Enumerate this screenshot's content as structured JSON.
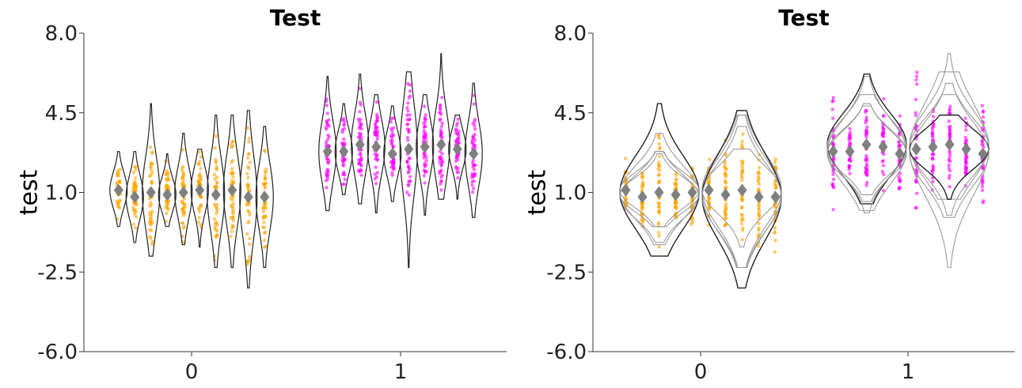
{
  "colors": {
    "group0_points": "#FFA500",
    "group1_points": "#FF00FF",
    "violin_outline": "#222222",
    "violin_outline_faded": "#9a9a9a",
    "mean_marker": "#808080"
  },
  "chart_data": [
    {
      "type": "violin",
      "title": "Test",
      "ylabel": "test",
      "xlabel": "",
      "ylim": [
        -6.0,
        8.0
      ],
      "yticks": [
        "8.0",
        "4.5",
        "1.0",
        "-2.5",
        "-6.0"
      ],
      "ytick_values": [
        8.0,
        4.5,
        1.0,
        -2.5,
        -6.0
      ],
      "categories": [
        "0",
        "1"
      ],
      "legend": "none",
      "grid": false,
      "layout_mode": "dodged",
      "series": [
        {
          "category": "0",
          "color": "#FFA500",
          "violins": [
            {
              "min": -0.5,
              "max": 2.8,
              "mean": 1.1
            },
            {
              "min": -1.2,
              "max": 2.8,
              "mean": 0.8
            },
            {
              "min": -1.8,
              "max": 4.9,
              "mean": 1.0
            },
            {
              "min": -0.5,
              "max": 2.7,
              "mean": 0.9
            },
            {
              "min": -1.3,
              "max": 3.6,
              "mean": 1.0
            },
            {
              "min": -1.4,
              "max": 2.9,
              "mean": 1.1
            },
            {
              "min": -2.3,
              "max": 4.4,
              "mean": 0.9
            },
            {
              "min": -2.3,
              "max": 4.4,
              "mean": 1.1
            },
            {
              "min": -3.2,
              "max": 4.6,
              "mean": 0.8
            },
            {
              "min": -2.3,
              "max": 3.9,
              "mean": 0.8
            }
          ]
        },
        {
          "category": "1",
          "color": "#FF00FF",
          "violins": [
            {
              "min": 0.2,
              "max": 6.1,
              "mean": 2.8
            },
            {
              "min": 0.9,
              "max": 4.9,
              "mean": 2.8
            },
            {
              "min": 0.5,
              "max": 6.2,
              "mean": 3.1
            },
            {
              "min": 0.1,
              "max": 5.3,
              "mean": 3.0
            },
            {
              "min": 0.6,
              "max": 4.8,
              "mean": 2.7
            },
            {
              "min": -2.3,
              "max": 6.3,
              "mean": 2.9
            },
            {
              "min": 0.0,
              "max": 5.3,
              "mean": 3.0
            },
            {
              "min": 0.7,
              "max": 7.1,
              "mean": 3.1
            },
            {
              "min": 0.7,
              "max": 4.4,
              "mean": 2.9
            },
            {
              "min": -0.1,
              "max": 5.8,
              "mean": 2.7
            }
          ]
        }
      ]
    },
    {
      "type": "violin",
      "title": "Test",
      "ylabel": "test",
      "xlabel": "",
      "ylim": [
        -6.0,
        8.0
      ],
      "yticks": [
        "8.0",
        "4.5",
        "1.0",
        "-2.5",
        "-6.0"
      ],
      "ytick_values": [
        8.0,
        4.5,
        1.0,
        -2.5,
        -6.0
      ],
      "categories": [
        "0",
        "1"
      ],
      "legend": "none",
      "grid": false,
      "layout_mode": "overlaid",
      "series": [
        {
          "category": "0",
          "color": "#FFA500",
          "violins": [
            {
              "min": -0.5,
              "max": 2.8,
              "mean": 1.1
            },
            {
              "min": -1.2,
              "max": 2.8,
              "mean": 0.8
            },
            {
              "min": -1.8,
              "max": 4.9,
              "mean": 1.0
            },
            {
              "min": -0.5,
              "max": 2.7,
              "mean": 0.9
            },
            {
              "min": -1.3,
              "max": 3.6,
              "mean": 1.0
            },
            {
              "min": -1.4,
              "max": 2.9,
              "mean": 1.1
            },
            {
              "min": -2.3,
              "max": 4.4,
              "mean": 0.9
            },
            {
              "min": -2.3,
              "max": 4.4,
              "mean": 1.1
            },
            {
              "min": -3.2,
              "max": 4.6,
              "mean": 0.8
            },
            {
              "min": -2.3,
              "max": 3.9,
              "mean": 0.8
            }
          ]
        },
        {
          "category": "1",
          "color": "#FF00FF",
          "violins": [
            {
              "min": 0.2,
              "max": 6.1,
              "mean": 2.8
            },
            {
              "min": 0.9,
              "max": 4.9,
              "mean": 2.8
            },
            {
              "min": 0.5,
              "max": 6.2,
              "mean": 3.1
            },
            {
              "min": 0.1,
              "max": 5.3,
              "mean": 3.0
            },
            {
              "min": 0.6,
              "max": 4.8,
              "mean": 2.7
            },
            {
              "min": -2.3,
              "max": 6.3,
              "mean": 2.9
            },
            {
              "min": 0.0,
              "max": 5.3,
              "mean": 3.0
            },
            {
              "min": 0.7,
              "max": 7.1,
              "mean": 3.1
            },
            {
              "min": 0.7,
              "max": 4.4,
              "mean": 2.9
            },
            {
              "min": -0.1,
              "max": 5.8,
              "mean": 2.7
            }
          ]
        }
      ]
    }
  ]
}
